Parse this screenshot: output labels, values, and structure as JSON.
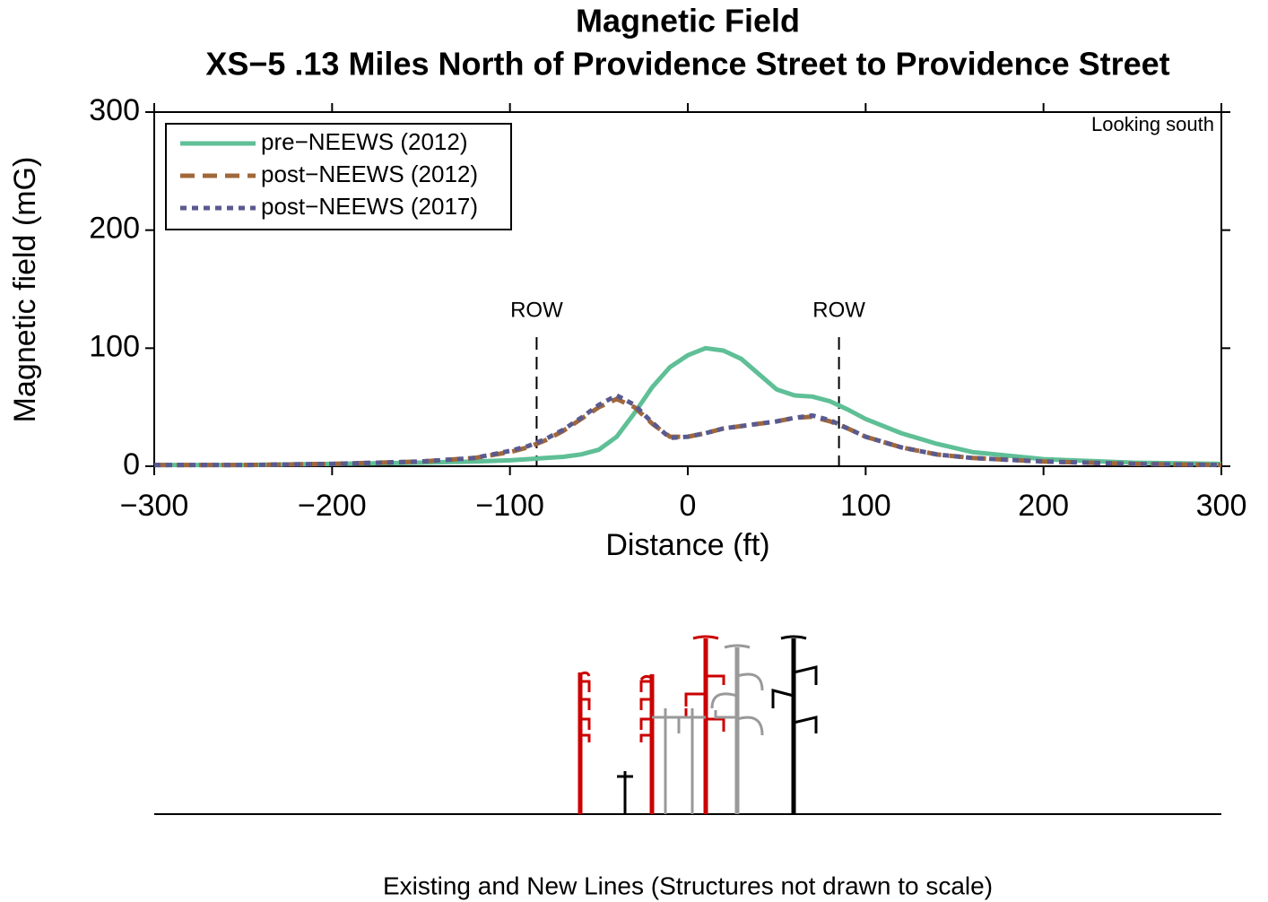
{
  "chart_data": {
    "type": "line",
    "title": "Magnetic Field",
    "subtitle": "XS−5 .13 Miles North of Providence Street to Providence Street",
    "x_label": "Distance (ft)",
    "y_label": "Magnetic field (mG)",
    "x": [
      -300,
      -250,
      -200,
      -150,
      -120,
      -100,
      -90,
      -80,
      -70,
      -60,
      -50,
      -40,
      -30,
      -20,
      -10,
      0,
      10,
      20,
      30,
      40,
      50,
      60,
      70,
      80,
      90,
      100,
      120,
      140,
      160,
      200,
      250,
      300
    ],
    "series": [
      {
        "name": "pre−NEEWS (2012)",
        "color": "#5fbf96",
        "dash": "solid",
        "values": [
          1,
          1,
          2,
          3,
          4,
          5,
          6,
          7,
          8,
          10,
          14,
          25,
          45,
          67,
          84,
          94,
          100,
          98,
          91,
          78,
          65,
          60,
          59,
          55,
          48,
          40,
          28,
          19,
          12,
          6,
          3,
          2
        ]
      },
      {
        "name": "post−NEEWS (2012)",
        "color": "#a0683a",
        "dash": "dashed",
        "values": [
          1,
          1,
          2,
          4,
          7,
          12,
          16,
          22,
          30,
          40,
          50,
          57,
          50,
          36,
          25,
          25,
          28,
          32,
          34,
          36,
          38,
          41,
          42,
          38,
          32,
          25,
          16,
          10,
          7,
          4,
          2,
          1
        ]
      },
      {
        "name": "post−NEEWS (2017)",
        "color": "#5a5a90",
        "dash": "dotted",
        "values": [
          1,
          1,
          2,
          4,
          7,
          13,
          17,
          23,
          31,
          41,
          52,
          60,
          52,
          37,
          24,
          25,
          28,
          32,
          34,
          36,
          38,
          41,
          43,
          39,
          32,
          25,
          16,
          10,
          7,
          4,
          2,
          1
        ]
      }
    ],
    "xlim": [
      -300,
      300
    ],
    "ylim": [
      0,
      300
    ],
    "xticks": [
      {
        "value": -300,
        "label": "−300"
      },
      {
        "value": -200,
        "label": "−200"
      },
      {
        "value": -100,
        "label": "−100"
      },
      0,
      100,
      200,
      300
    ],
    "yticks": [
      0,
      100,
      200,
      300
    ],
    "legend": "upper left",
    "annotations": [
      {
        "text": "ROW",
        "x": -85
      },
      {
        "text": "ROW",
        "x": 85
      }
    ],
    "corner_note": "Looking south",
    "caption": "Existing and New Lines (Structures not drawn to scale)"
  }
}
